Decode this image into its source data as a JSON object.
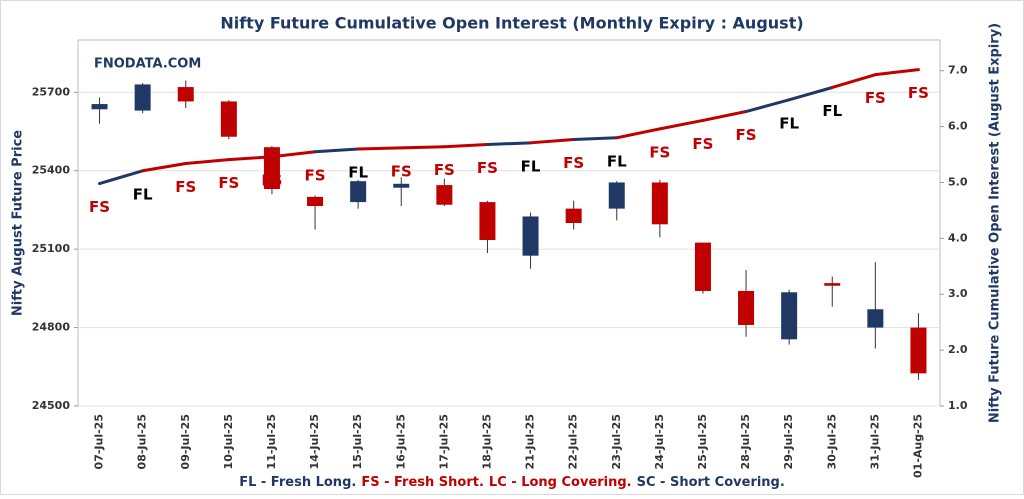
{
  "chart_data": {
    "type": "candlestick",
    "title": "Nifty Future Cumulative Open Interest (Monthly Expiry : August)",
    "watermark": "FNODATA.COM",
    "y_label": "Nifty August Future Price",
    "y2_label": "Nifty Future Cumulative Open Interest (August Expiry)",
    "categories": [
      "07-Jul-25",
      "08-Jul-25",
      "09-Jul-25",
      "10-Jul-25",
      "11-Jul-25",
      "14-Jul-25",
      "15-Jul-25",
      "16-Jul-25",
      "17-Jul-25",
      "18-Jul-25",
      "21-Jul-25",
      "22-Jul-25",
      "23-Jul-25",
      "24-Jul-25",
      "25-Jul-25",
      "28-Jul-25",
      "29-Jul-25",
      "30-Jul-25",
      "31-Jul-25",
      "01-Aug-25"
    ],
    "open": [
      25635,
      25630,
      25720,
      25665,
      25490,
      25300,
      25280,
      25335,
      25345,
      25280,
      25075,
      25255,
      25255,
      25355,
      25125,
      24940,
      24755,
      24970,
      24800,
      24800
    ],
    "high": [
      25680,
      25735,
      25745,
      25670,
      25495,
      25305,
      25365,
      25375,
      25370,
      25285,
      25240,
      25285,
      25360,
      25365,
      25125,
      25020,
      24945,
      24995,
      25050,
      24855
    ],
    "low": [
      25580,
      25620,
      25640,
      25520,
      25310,
      25175,
      25255,
      25265,
      25265,
      25085,
      25025,
      25175,
      25210,
      25145,
      24930,
      24765,
      24735,
      24880,
      24720,
      24600
    ],
    "close": [
      25655,
      25730,
      25665,
      25530,
      25330,
      25265,
      25360,
      25350,
      25270,
      25135,
      25225,
      25200,
      25355,
      25195,
      24940,
      24810,
      24935,
      24960,
      24870,
      24625
    ],
    "up_color": "#1f3864",
    "down_color": "#c00000",
    "oi": [
      4.98,
      5.21,
      5.34,
      5.41,
      5.46,
      5.55,
      5.6,
      5.62,
      5.64,
      5.68,
      5.71,
      5.77,
      5.8,
      5.96,
      6.11,
      6.27,
      6.48,
      6.7,
      6.93,
      7.02
    ],
    "signals": [
      "FS",
      "FL",
      "FS",
      "FS",
      "FS",
      "FS",
      "FL",
      "FS",
      "FS",
      "FS",
      "FL",
      "FS",
      "FL",
      "FS",
      "FS",
      "FS",
      "FL",
      "FL",
      "FS",
      "FS"
    ],
    "signal_colors": {
      "FL": "#000000",
      "FS": "#c00000"
    },
    "line_colors": {
      "FL": "#1f3864",
      "FS": "#c00000"
    },
    "ylim": [
      24500,
      25900
    ],
    "yticks": [
      24500,
      24800,
      25100,
      25400,
      25700
    ],
    "y2lim": [
      1.0,
      7.55
    ],
    "y2ticks": [
      {
        "value": 1,
        "label": "1.0"
      },
      {
        "value": 2,
        "label": "2.0"
      },
      {
        "value": 3,
        "label": "3.0"
      },
      {
        "value": 4,
        "label": "4.0"
      },
      {
        "value": 5,
        "label": "5.0"
      },
      {
        "value": 6,
        "label": "6.0"
      },
      {
        "value": 7,
        "label": "7.0"
      }
    ],
    "grid": true,
    "legend_items": [
      {
        "text": "FL - Fresh Long.",
        "color": "#1f3864"
      },
      {
        "text": "FS - Fresh Short.",
        "color": "#c00000"
      },
      {
        "text": "LC - Long Covering.",
        "color": "#c00000"
      },
      {
        "text": "SC - Short Covering.",
        "color": "#1f3864"
      }
    ]
  }
}
